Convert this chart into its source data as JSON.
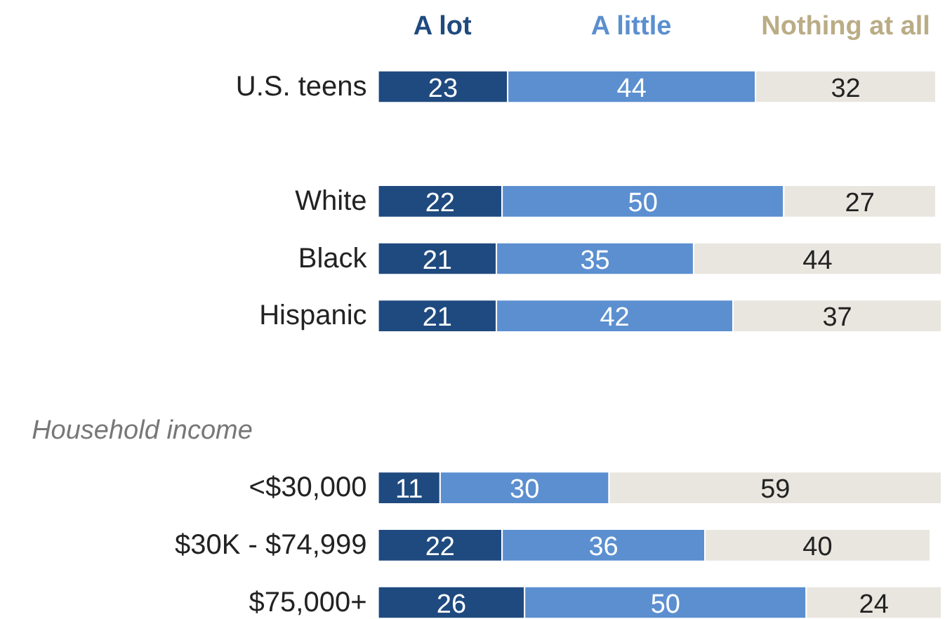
{
  "chart_data": {
    "type": "bar",
    "orientation": "horizontal",
    "stacked": true,
    "data_labels": true,
    "legend": "top",
    "tick_labels": "y",
    "grid": false,
    "xlim": [
      0,
      100
    ],
    "categories": [
      "U.S. teens",
      null,
      "White",
      "Black",
      "Hispanic",
      null,
      null,
      "<$30,000",
      "$30K - $74,999",
      "$75,000+"
    ],
    "series": [
      {
        "name": "A lot",
        "color": "#1f4a7f",
        "values": [
          23,
          null,
          22,
          21,
          21,
          null,
          null,
          11,
          22,
          26
        ]
      },
      {
        "name": "A little",
        "color": "#5b8fd0",
        "values": [
          44,
          null,
          50,
          35,
          42,
          null,
          null,
          30,
          36,
          50
        ]
      },
      {
        "name": "Nothing at all",
        "color": "#e9e6df",
        "values": [
          32,
          null,
          27,
          44,
          37,
          null,
          null,
          59,
          40,
          24
        ]
      }
    ],
    "annotations": [
      "Household income"
    ]
  }
}
